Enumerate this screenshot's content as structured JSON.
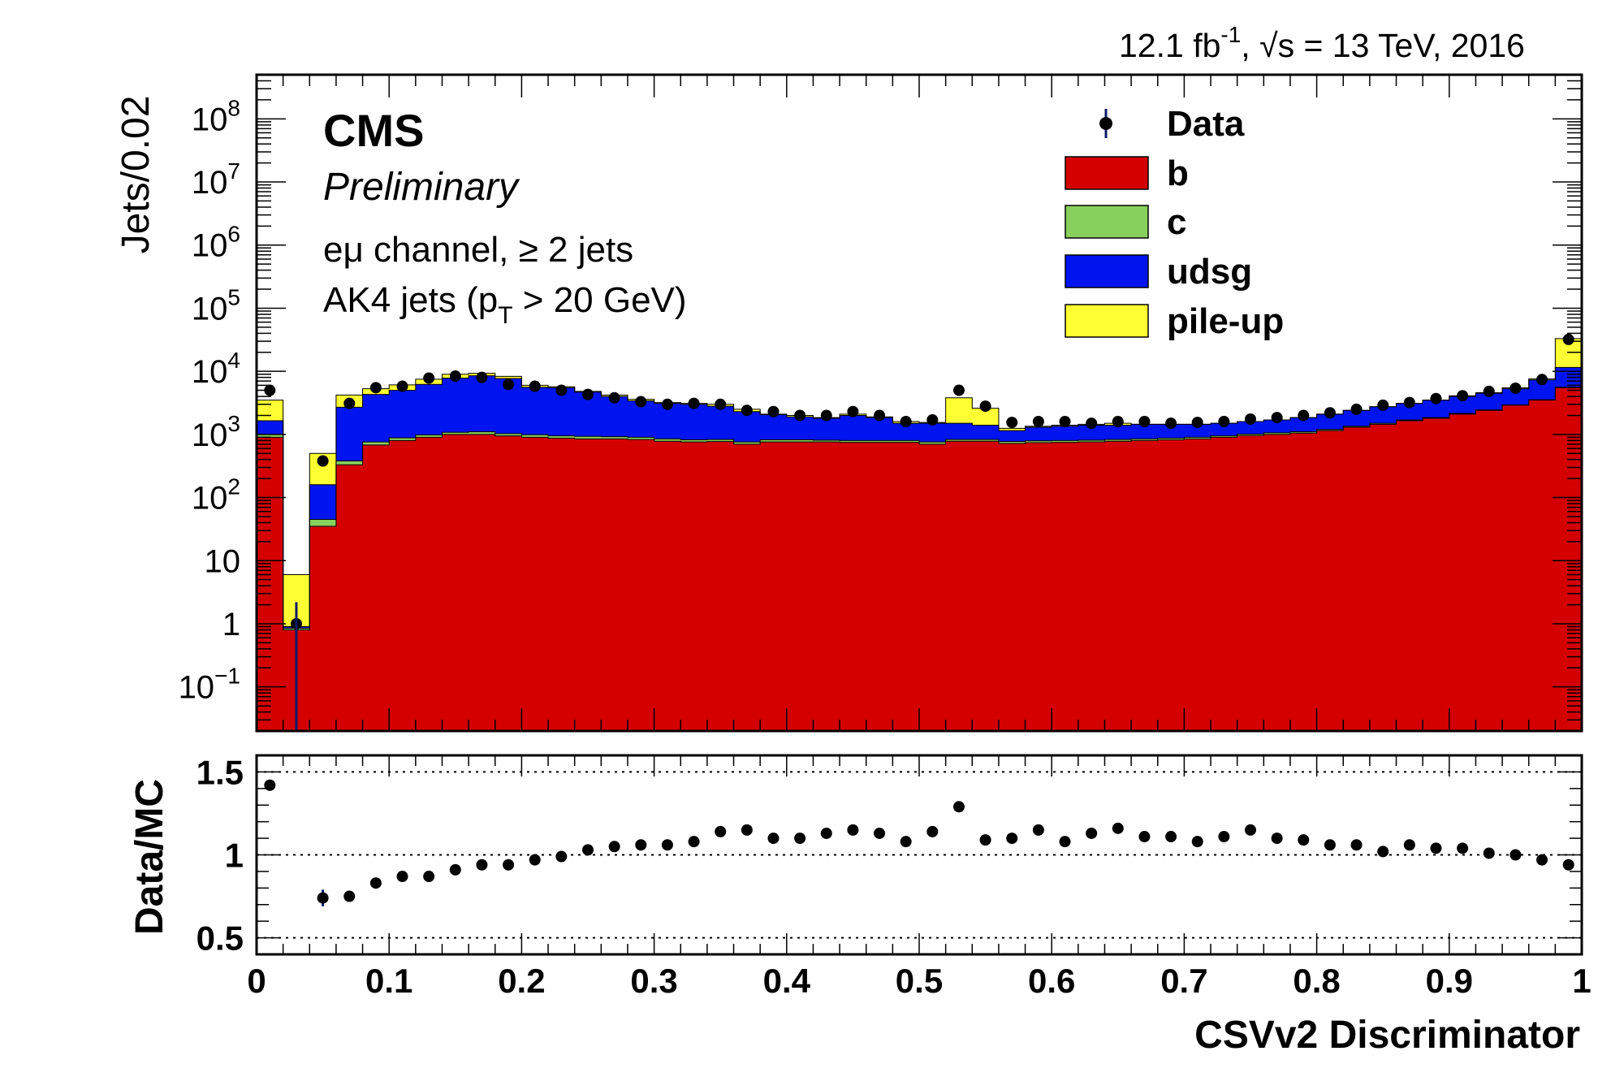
{
  "header": {
    "lumi": "12.1 fb",
    "lumi_exp": "-1",
    "energy": ", √s = 13 TeV, 2016"
  },
  "labels": {
    "experiment": "CMS",
    "status": "Preliminary",
    "channel": "eμ channel, ≥ 2 jets",
    "selection_pre": "AK4 jets (p",
    "selection_sub": "T",
    "selection_post": " > 20 GeV)"
  },
  "colors": {
    "b": "#d40000",
    "c": "#88d05c",
    "udsg": "#0014f0",
    "pileup": "#ffff33",
    "data": "#000000"
  },
  "chart_data": [
    {
      "type": "area",
      "title": "",
      "xlabel": "",
      "ylabel": "Jets/0.02",
      "yscale": "log",
      "xlim": [
        0,
        1
      ],
      "ylim": [
        0.02,
        500000000
      ],
      "yticks": [
        {
          "value": 0.1,
          "base": "10",
          "exp": "−1"
        },
        {
          "value": 1,
          "label": "1"
        },
        {
          "value": 10,
          "label": "10"
        },
        {
          "value": 100,
          "base": "10",
          "exp": "2"
        },
        {
          "value": 1000,
          "base": "10",
          "exp": "3"
        },
        {
          "value": 10000,
          "base": "10",
          "exp": "4"
        },
        {
          "value": 100000,
          "base": "10",
          "exp": "5"
        },
        {
          "value": 1000000,
          "base": "10",
          "exp": "6"
        },
        {
          "value": 10000000,
          "base": "10",
          "exp": "7"
        },
        {
          "value": 100000000,
          "base": "10",
          "exp": "8"
        }
      ],
      "bin_width": 0.02,
      "bin_edges_start": 0,
      "legend": [
        {
          "label": "Data",
          "kind": "marker",
          "color": "#000000"
        },
        {
          "label": "b",
          "kind": "fill",
          "color": "#d40000"
        },
        {
          "label": "c",
          "kind": "fill",
          "color": "#88d05c"
        },
        {
          "label": "udsg",
          "kind": "fill",
          "color": "#0014f0"
        },
        {
          "label": "pile-up",
          "kind": "fill",
          "color": "#ffff33"
        }
      ],
      "legend_position": "top-right",
      "stack_totals": {
        "b": [
          900,
          0.8,
          35,
          330,
          680,
          800,
          900,
          1000,
          1000,
          950,
          900,
          870,
          850,
          850,
          830,
          780,
          760,
          770,
          700,
          760,
          760,
          760,
          750,
          750,
          750,
          700,
          780,
          780,
          720,
          740,
          750,
          760,
          780,
          800,
          820,
          850,
          900,
          960,
          1000,
          1050,
          1150,
          1300,
          1450,
          1650,
          1800,
          2100,
          2400,
          2900,
          3500,
          5500
        ],
        "b_c": [
          1000,
          0.85,
          45,
          380,
          760,
          880,
          980,
          1080,
          1100,
          1030,
          990,
          950,
          930,
          920,
          900,
          850,
          820,
          830,
          760,
          820,
          820,
          810,
          800,
          800,
          800,
          760,
          830,
          830,
          770,
          790,
          800,
          810,
          830,
          850,
          870,
          900,
          950,
          1010,
          1060,
          1100,
          1200,
          1350,
          1500,
          1700,
          1850,
          2150,
          2450,
          2950,
          3550,
          5600
        ],
        "b_c_udsg": [
          1650,
          0.9,
          160,
          2700,
          4300,
          5000,
          6200,
          7800,
          8500,
          7700,
          5600,
          5500,
          4700,
          4000,
          3400,
          3100,
          3000,
          2800,
          2300,
          2050,
          1900,
          1800,
          2000,
          1850,
          1500,
          1500,
          1500,
          1400,
          1150,
          1300,
          1350,
          1400,
          1400,
          1450,
          1450,
          1450,
          1500,
          1600,
          1700,
          1850,
          2100,
          2400,
          2750,
          3100,
          3500,
          4000,
          4500,
          5300,
          7300,
          11500
        ],
        "total": [
          3500,
          6,
          500,
          4200,
          5300,
          6100,
          7500,
          9000,
          9300,
          8300,
          6000,
          5700,
          4800,
          4200,
          3600,
          3200,
          3100,
          3000,
          2500,
          2100,
          2000,
          1850,
          2100,
          1900,
          1600,
          1550,
          3800,
          2600,
          1250,
          1350,
          1400,
          1450,
          1500,
          1450,
          1450,
          1450,
          1500,
          1600,
          1700,
          1850,
          2100,
          2400,
          2750,
          3100,
          3500,
          4100,
          4600,
          5500,
          7600,
          33000
        ]
      },
      "series": [
        {
          "name": "Data",
          "x": [
            0.01,
            0.03,
            0.05,
            0.07,
            0.09,
            0.11,
            0.13,
            0.15,
            0.17,
            0.19,
            0.21,
            0.23,
            0.25,
            0.27,
            0.29,
            0.31,
            0.33,
            0.35,
            0.37,
            0.39,
            0.41,
            0.43,
            0.45,
            0.47,
            0.49,
            0.51,
            0.53,
            0.55,
            0.57,
            0.59,
            0.61,
            0.63,
            0.65,
            0.67,
            0.69,
            0.71,
            0.73,
            0.75,
            0.77,
            0.79,
            0.81,
            0.83,
            0.85,
            0.87,
            0.89,
            0.91,
            0.93,
            0.95,
            0.97,
            0.99
          ],
          "values": [
            5000,
            1,
            380,
            3100,
            5500,
            5800,
            7800,
            8400,
            8000,
            6200,
            5800,
            5000,
            4300,
            3800,
            3300,
            3000,
            3100,
            3000,
            2400,
            2300,
            2000,
            2000,
            2300,
            2000,
            1600,
            1700,
            5000,
            2800,
            1550,
            1600,
            1600,
            1500,
            1600,
            1600,
            1500,
            1550,
            1600,
            1750,
            1850,
            2000,
            2200,
            2500,
            2900,
            3200,
            3700,
            4100,
            4800,
            5400,
            7400,
            32000
          ],
          "err_low": 0.015,
          "err_high": 2.2,
          "err_bin": 0.03
        }
      ]
    },
    {
      "type": "scatter",
      "title": "",
      "xlabel": "CSVv2 Discriminator",
      "ylabel": "Data/MC",
      "xlim": [
        0,
        1
      ],
      "ylim": [
        0.4,
        1.6
      ],
      "xticks": [
        "0",
        "0.1",
        "0.2",
        "0.3",
        "0.4",
        "0.5",
        "0.6",
        "0.7",
        "0.8",
        "0.9",
        "1"
      ],
      "yticks": [
        "0.5",
        "1",
        "1.5"
      ],
      "grid_lines": [
        0.5,
        1,
        1.5
      ],
      "series": [
        {
          "name": "Data/MC",
          "x": [
            0.01,
            0.05,
            0.07,
            0.09,
            0.11,
            0.13,
            0.15,
            0.17,
            0.19,
            0.21,
            0.23,
            0.25,
            0.27,
            0.29,
            0.31,
            0.33,
            0.35,
            0.37,
            0.39,
            0.41,
            0.43,
            0.45,
            0.47,
            0.49,
            0.51,
            0.53,
            0.55,
            0.57,
            0.59,
            0.61,
            0.63,
            0.65,
            0.67,
            0.69,
            0.71,
            0.73,
            0.75,
            0.77,
            0.79,
            0.81,
            0.83,
            0.85,
            0.87,
            0.89,
            0.91,
            0.93,
            0.95,
            0.97,
            0.99
          ],
          "values": [
            1.42,
            0.74,
            0.75,
            0.83,
            0.87,
            0.87,
            0.91,
            0.94,
            0.94,
            0.97,
            0.99,
            1.03,
            1.05,
            1.06,
            1.06,
            1.08,
            1.14,
            1.15,
            1.1,
            1.1,
            1.13,
            1.15,
            1.13,
            1.08,
            1.14,
            1.29,
            1.09,
            1.1,
            1.15,
            1.08,
            1.13,
            1.16,
            1.11,
            1.11,
            1.08,
            1.11,
            1.15,
            1.1,
            1.09,
            1.06,
            1.06,
            1.02,
            1.06,
            1.04,
            1.04,
            1.01,
            1.0,
            0.97,
            0.94
          ],
          "err_point": {
            "x": 0.05,
            "low": 0.69,
            "high": 0.79
          }
        }
      ]
    }
  ]
}
